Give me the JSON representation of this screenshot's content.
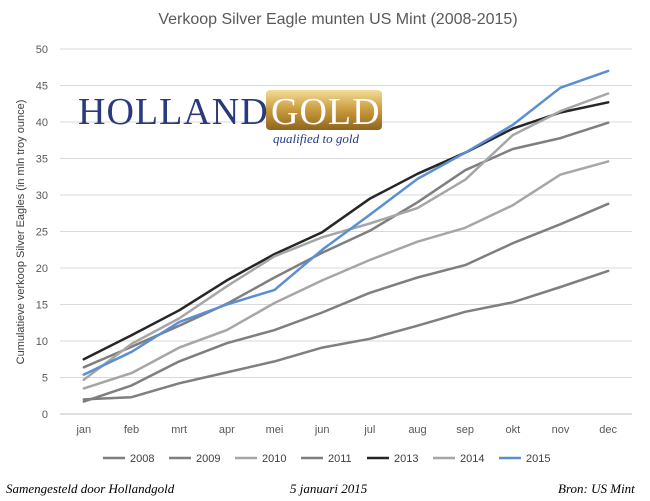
{
  "chart_data": {
    "type": "line",
    "title": "Verkoop Silver Eagle munten US Mint (2008-2015)",
    "xlabel": "",
    "ylabel": "Cumulatieve verkoop Silver Eagles (in mln troy ounce)",
    "ylim": [
      0,
      50
    ],
    "yticks": [
      0,
      5,
      10,
      15,
      20,
      25,
      30,
      35,
      40,
      45,
      50
    ],
    "grid": true,
    "legend_position": "bottom",
    "categories": [
      "jan",
      "feb",
      "mrt",
      "apr",
      "mei",
      "jun",
      "jul",
      "aug",
      "sep",
      "okt",
      "nov",
      "dec"
    ],
    "series": [
      {
        "name": "2008",
        "color": "#7f7f7f",
        "width": 2.5,
        "values": [
          2.0,
          2.3,
          4.2,
          5.7,
          7.2,
          9.1,
          10.3,
          12.1,
          14.0,
          15.3,
          17.4,
          19.6
        ]
      },
      {
        "name": "2009",
        "color": "#7f7f7f",
        "width": 2.5,
        "values": [
          1.7,
          3.9,
          7.2,
          9.7,
          11.5,
          13.9,
          16.6,
          18.7,
          20.4,
          23.4,
          26.0,
          28.8
        ]
      },
      {
        "name": "2010",
        "color": "#a6a6a6",
        "width": 2.5,
        "values": [
          3.5,
          5.6,
          9.1,
          11.5,
          15.2,
          18.3,
          21.1,
          23.6,
          25.5,
          28.6,
          32.8,
          34.6
        ]
      },
      {
        "name": "2011",
        "color": "#7f7f7f",
        "width": 2.5,
        "values": [
          6.4,
          9.2,
          12.1,
          15.1,
          18.7,
          22.1,
          25.1,
          29.0,
          33.4,
          36.3,
          37.8,
          39.9
        ]
      },
      {
        "name": "2013",
        "color": "#262626",
        "width": 2.5,
        "values": [
          7.5,
          10.8,
          14.2,
          18.3,
          21.9,
          24.9,
          29.5,
          32.9,
          35.8,
          39.1,
          41.3,
          42.7
        ]
      },
      {
        "name": "2014",
        "color": "#a6a6a6",
        "width": 2.5,
        "values": [
          4.7,
          9.6,
          13.1,
          17.5,
          21.6,
          24.2,
          26.1,
          28.2,
          32.1,
          38.2,
          41.5,
          43.9
        ]
      },
      {
        "name": "2015",
        "color": "#5b8fd4",
        "width": 2.5,
        "values": [
          5.4,
          8.5,
          12.6,
          15.0,
          17.0,
          22.5,
          27.3,
          32.2,
          35.8,
          39.6,
          44.7,
          47.0
        ]
      }
    ]
  },
  "logo": {
    "word1": "HOLLAND",
    "word2": "GOLD",
    "tagline": "qualified to gold"
  },
  "footer": {
    "left": "Samengesteld door Hollandgold",
    "center": "5 januari 2015",
    "right": "Bron: US Mint"
  }
}
